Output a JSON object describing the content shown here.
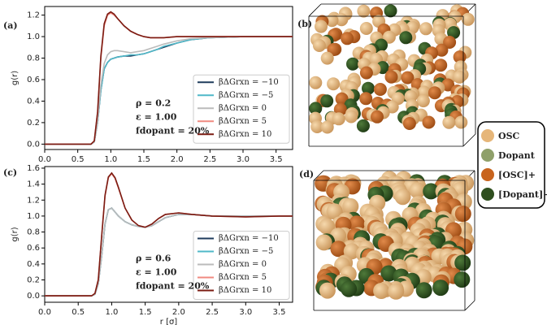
{
  "chart_data": [
    {
      "type": "line",
      "panel": "(a)",
      "ylabel": "g(r)",
      "x": [
        0,
        0.5,
        0.7,
        0.75,
        0.8,
        0.85,
        0.9,
        0.95,
        1.0,
        1.05,
        1.1,
        1.2,
        1.3,
        1.4,
        1.5,
        1.6,
        1.7,
        1.8,
        2.0,
        2.2,
        2.5,
        3.0,
        3.5,
        3.75
      ],
      "xlim": [
        0,
        3.75
      ],
      "ylim": [
        -0.05,
        1.28
      ],
      "xticks": [
        {
          "value": 0,
          "label": "0.0"
        },
        0.5,
        {
          "value": 1,
          "label": "1.0"
        },
        1.5,
        {
          "value": 2,
          "label": "2.0"
        },
        2.5,
        {
          "value": 3,
          "label": "3.0"
        },
        3.5
      ],
      "yticks": [
        {
          "value": 0,
          "label": "0.0"
        },
        0.2,
        0.4,
        0.6,
        0.8,
        {
          "value": 1,
          "label": "1.0"
        },
        1.2
      ],
      "annotations": [
        "ρ = 0.2",
        "ε = 1.00",
        "fdopant = 20%"
      ],
      "series": [
        {
          "name": "βΔGrxn = −10",
          "color": "#1f3b5c",
          "values": [
            0,
            0,
            0,
            0.02,
            0.2,
            0.5,
            0.7,
            0.76,
            0.79,
            0.8,
            0.81,
            0.82,
            0.82,
            0.83,
            0.84,
            0.86,
            0.88,
            0.9,
            0.94,
            0.97,
            0.99,
            1.0,
            1.0,
            1.0
          ]
        },
        {
          "name": "βΔGrxn = −5",
          "color": "#4fb8c8",
          "values": [
            0,
            0,
            0,
            0.02,
            0.2,
            0.5,
            0.7,
            0.76,
            0.79,
            0.8,
            0.81,
            0.82,
            0.83,
            0.83,
            0.84,
            0.86,
            0.88,
            0.91,
            0.94,
            0.97,
            0.99,
            1.0,
            1.0,
            1.0
          ]
        },
        {
          "name": "βΔGrxn = 0",
          "color": "#bbbbbb",
          "values": [
            0,
            0,
            0,
            0.02,
            0.2,
            0.55,
            0.75,
            0.83,
            0.86,
            0.87,
            0.87,
            0.86,
            0.85,
            0.86,
            0.87,
            0.89,
            0.91,
            0.93,
            0.96,
            0.98,
            0.99,
            1.0,
            1.0,
            1.0
          ]
        },
        {
          "name": "βΔGrxn = 5",
          "color": "#f08a80",
          "values": [
            0,
            0,
            0,
            0.03,
            0.3,
            0.8,
            1.1,
            1.2,
            1.22,
            1.2,
            1.17,
            1.1,
            1.05,
            1.02,
            1.0,
            0.99,
            0.99,
            0.99,
            1.0,
            1.0,
            1.0,
            1.0,
            1.0,
            1.0
          ]
        },
        {
          "name": "βΔGrxn = 10",
          "color": "#7b1b12",
          "values": [
            0,
            0,
            0,
            0.03,
            0.3,
            0.82,
            1.12,
            1.21,
            1.23,
            1.21,
            1.17,
            1.1,
            1.05,
            1.02,
            1.0,
            0.99,
            0.99,
            0.99,
            1.0,
            1.0,
            1.0,
            1.0,
            1.0,
            1.0
          ]
        }
      ]
    },
    {
      "type": "line",
      "panel": "(c)",
      "ylabel": "g(r)",
      "xlabel": "r [σ]",
      "x": [
        0,
        0.5,
        0.7,
        0.75,
        0.8,
        0.85,
        0.9,
        0.95,
        1.0,
        1.05,
        1.1,
        1.2,
        1.3,
        1.4,
        1.5,
        1.6,
        1.7,
        1.8,
        2.0,
        2.2,
        2.5,
        3.0,
        3.5,
        3.7
      ],
      "xlim": [
        0,
        3.7
      ],
      "ylim": [
        -0.08,
        1.62
      ],
      "xticks": [
        {
          "value": 0,
          "label": "0.0"
        },
        0.5,
        {
          "value": 1,
          "label": "1.0"
        },
        1.5,
        {
          "value": 2,
          "label": "2.0"
        },
        2.5,
        {
          "value": 3,
          "label": "3.0"
        },
        3.5
      ],
      "yticks": [
        {
          "value": 0,
          "label": "0.0"
        },
        0.2,
        0.4,
        0.6,
        0.8,
        {
          "value": 1,
          "label": "1.0"
        },
        1.2,
        1.4,
        1.6
      ],
      "annotations": [
        "ρ = 0.6",
        "ε = 1.00",
        "fdopant = 20%"
      ],
      "series": [
        {
          "name": "βΔGrxn = −10",
          "color": "#1f3b5c",
          "values": [
            0,
            0,
            0,
            0.02,
            0.15,
            0.5,
            0.9,
            1.08,
            1.1,
            1.05,
            1.0,
            0.93,
            0.89,
            0.87,
            0.86,
            0.88,
            0.93,
            0.98,
            1.02,
            1.02,
            1.0,
            1.0,
            1.0,
            1.0
          ]
        },
        {
          "name": "βΔGrxn = −5",
          "color": "#4fb8c8",
          "values": [
            0,
            0,
            0,
            0.02,
            0.15,
            0.5,
            0.9,
            1.08,
            1.1,
            1.05,
            1.0,
            0.93,
            0.89,
            0.87,
            0.86,
            0.88,
            0.93,
            0.98,
            1.02,
            1.02,
            1.0,
            1.0,
            1.0,
            1.0
          ]
        },
        {
          "name": "βΔGrxn = 0",
          "color": "#bbbbbb",
          "values": [
            0,
            0,
            0,
            0.02,
            0.15,
            0.5,
            0.9,
            1.08,
            1.1,
            1.05,
            1.0,
            0.93,
            0.89,
            0.87,
            0.86,
            0.88,
            0.93,
            0.98,
            1.02,
            1.02,
            1.0,
            1.0,
            1.0,
            1.0
          ]
        },
        {
          "name": "βΔGrxn = 5",
          "color": "#f08a80",
          "values": [
            0,
            0,
            0,
            0.03,
            0.2,
            0.75,
            1.25,
            1.48,
            1.53,
            1.47,
            1.35,
            1.1,
            0.95,
            0.88,
            0.86,
            0.9,
            0.97,
            1.02,
            1.04,
            1.02,
            1.0,
            0.99,
            1.0,
            1.0
          ]
        },
        {
          "name": "βΔGrxn = 10",
          "color": "#7b1b12",
          "values": [
            0,
            0,
            0,
            0.03,
            0.2,
            0.75,
            1.26,
            1.49,
            1.54,
            1.48,
            1.36,
            1.1,
            0.95,
            0.88,
            0.86,
            0.9,
            0.97,
            1.02,
            1.04,
            1.02,
            1.0,
            0.99,
            1.0,
            1.0
          ]
        }
      ]
    }
  ],
  "panels": [
    "(b)",
    "(d)"
  ],
  "legend": {
    "items": [
      "OSC",
      "Dopant",
      "[OSC]+",
      "[Dopant]−"
    ]
  }
}
